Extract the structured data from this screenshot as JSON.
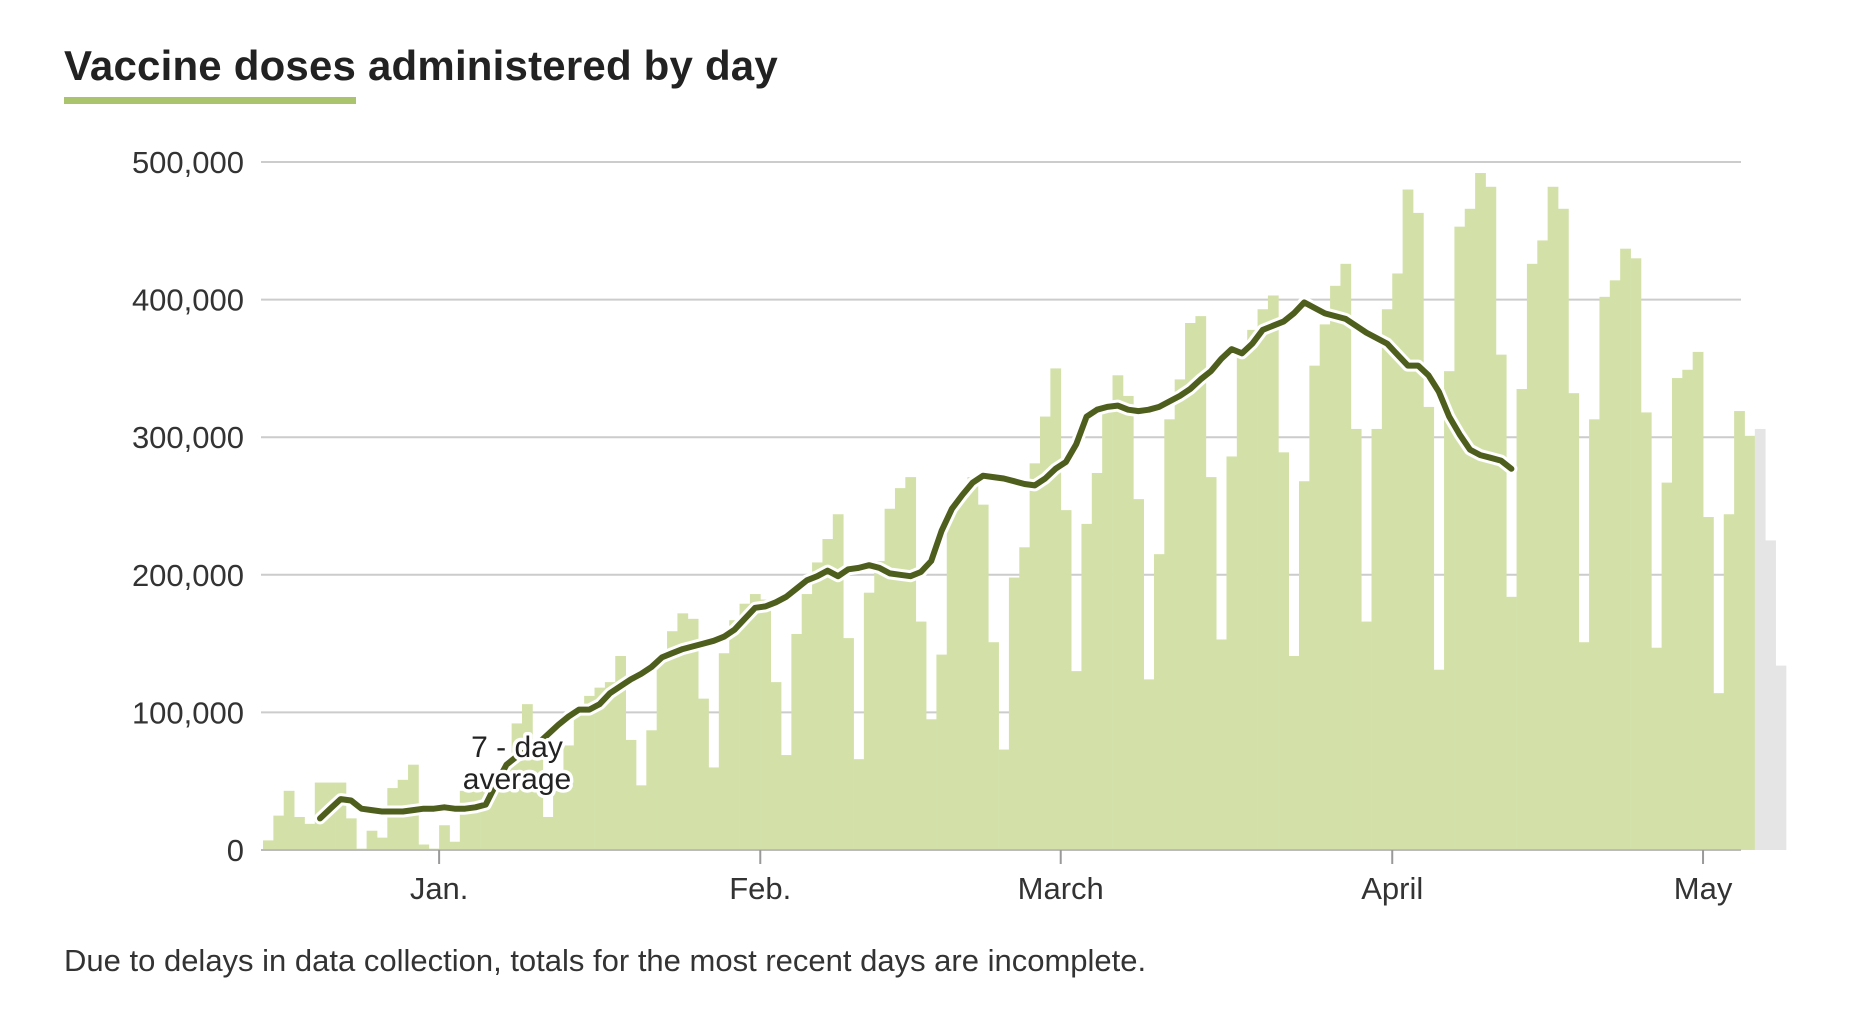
{
  "title": {
    "highlight": "Vaccine doses",
    "rest": "administered by day"
  },
  "note": "Due to delays in data collection, totals for the most recent days are incomplete.",
  "colors": {
    "bar": "#d3e1a9",
    "bar_incomplete": "#e5e5e5",
    "line": "#4e5e1c",
    "grid": "#cccccc",
    "highlight": "#a9c46c"
  },
  "chart_data": {
    "type": "bar",
    "x_axis_labels": [
      "Jan.",
      "Feb.",
      "March",
      "April",
      "May"
    ],
    "y_axis_labels": [
      "500,000",
      "400,000",
      "300,000",
      "200,000",
      "100,000",
      "0"
    ],
    "ylim": [
      0,
      500000
    ],
    "annotation": [
      "7 - day",
      "average"
    ],
    "daily_doses": [
      7000,
      25000,
      43000,
      24000,
      19000,
      49000,
      49000,
      49000,
      23000,
      1000,
      14000,
      9000,
      45000,
      51000,
      62000,
      4000,
      1000,
      18000,
      6000,
      43000,
      43000,
      44000,
      52000,
      61000,
      92000,
      106000,
      79000,
      24000,
      43000,
      76000,
      105000,
      112000,
      118000,
      122000,
      141000,
      80000,
      47000,
      87000,
      140000,
      159000,
      172000,
      168000,
      110000,
      60000,
      143000,
      167000,
      179000,
      186000,
      182000,
      122000,
      69000,
      157000,
      186000,
      209000,
      226000,
      244000,
      154000,
      66000,
      187000,
      210000,
      248000,
      263000,
      271000,
      166000,
      95000,
      142000,
      248000,
      257000,
      271000,
      251000,
      151000,
      73000,
      198000,
      220000,
      281000,
      315000,
      350000,
      247000,
      130000,
      237000,
      274000,
      325000,
      345000,
      330000,
      255000,
      124000,
      215000,
      313000,
      342000,
      383000,
      388000,
      271000,
      153000,
      286000,
      365000,
      378000,
      393000,
      403000,
      289000,
      141000,
      268000,
      352000,
      382000,
      410000,
      426000,
      306000,
      166000,
      306000,
      393000,
      419000,
      480000,
      463000,
      322000,
      131000,
      348000,
      453000,
      466000,
      492000,
      482000,
      360000,
      184000,
      335000,
      426000,
      443000,
      482000,
      466000,
      332000,
      151000,
      313000,
      402000,
      414000,
      437000,
      430000,
      318000,
      147000,
      267000,
      343000,
      349000,
      362000,
      242000,
      114000,
      244000,
      319000,
      301000,
      306000,
      225000,
      134000
    ],
    "incomplete_last_n": 3,
    "seven_day_average": [
      23000,
      30000,
      37000,
      36000,
      30000,
      29000,
      28000,
      28000,
      28000,
      29000,
      30000,
      30000,
      31000,
      30000,
      30000,
      31000,
      33000,
      48000,
      62000,
      68000,
      72000,
      77000,
      84000,
      91000,
      97000,
      102000,
      102000,
      106000,
      114000,
      119000,
      124000,
      128000,
      133000,
      140000,
      143000,
      146000,
      148000,
      150000,
      152000,
      155000,
      160000,
      168000,
      176000,
      177000,
      180000,
      184000,
      190000,
      196000,
      199000,
      203000,
      199000,
      204000,
      205000,
      207000,
      205000,
      201000,
      200000,
      199000,
      202000,
      210000,
      232000,
      248000,
      258000,
      267000,
      272000,
      271000,
      270000,
      268000,
      266000,
      265000,
      270000,
      277000,
      282000,
      295000,
      315000,
      320000,
      322000,
      323000,
      320000,
      319000,
      320000,
      322000,
      326000,
      330000,
      335000,
      342000,
      348000,
      357000,
      364000,
      361000,
      368000,
      378000,
      381000,
      384000,
      390000,
      398000,
      394000,
      390000,
      388000,
      386000,
      381000,
      376000,
      372000,
      368000,
      360000,
      352000,
      352000,
      345000,
      333000,
      315000,
      302000,
      291000,
      287000,
      285000,
      283000,
      277000
    ]
  }
}
